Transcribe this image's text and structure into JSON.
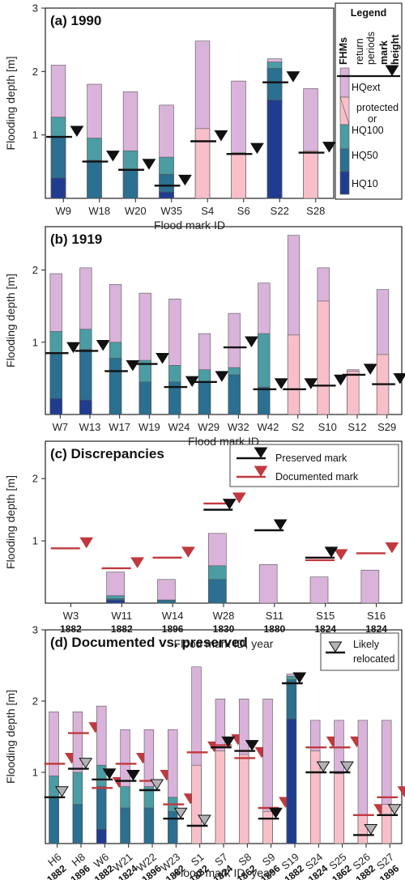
{
  "colors": {
    "hqext": "#d9b3d9",
    "hq100": "#4c9ca3",
    "hq50": "#2b6f91",
    "hq10": "#1f3c8f",
    "protected": "#f8bfc9",
    "preserved": "#111111",
    "documented": "#c0393e",
    "relocated": "#b3b3b3"
  },
  "legend_main": {
    "title": "Legend",
    "fhms": "FHMs",
    "return": "return",
    "periods": "periods",
    "mark": "mark",
    "height": "height",
    "hqext": "HQext",
    "protected": "protected",
    "or": "or",
    "hq100": "HQ100",
    "hq50": "HQ50",
    "hq10": "HQ10"
  },
  "chart_data": [
    {
      "type": "bar",
      "title": "(a) 1990",
      "ylabel": "Flooding depth [m]",
      "xlabel": "Flood mark ID",
      "ylim": [
        0,
        3.0
      ],
      "yticks": [
        "1",
        "2",
        "3"
      ],
      "categories": [
        "W9",
        "W18",
        "W20",
        "W35",
        "S4",
        "S6",
        "S22",
        "S28"
      ],
      "series": [
        {
          "key": "hq10",
          "values": [
            0.32,
            0,
            0,
            0.1,
            0,
            0,
            1.55,
            0
          ]
        },
        {
          "key": "hq50",
          "values": [
            0.97,
            0.6,
            0.45,
            0.38,
            0,
            0,
            2.05,
            0
          ]
        },
        {
          "key": "hq100",
          "values": [
            1.28,
            0.95,
            0.75,
            0.65,
            0,
            0,
            2.15,
            0
          ]
        },
        {
          "key": "protected",
          "values": [
            0,
            0,
            0,
            0,
            1.1,
            0.72,
            0,
            0.75
          ]
        },
        {
          "key": "hqext",
          "values": [
            2.1,
            1.8,
            1.68,
            1.47,
            2.48,
            1.85,
            2.2,
            1.73
          ]
        }
      ],
      "preserved": [
        0.97,
        0.58,
        0.45,
        0.2,
        0.9,
        0.7,
        1.83,
        0.72
      ],
      "documented": []
    },
    {
      "type": "bar",
      "title": "(b) 1919",
      "ylabel": "Flooding depth [m]",
      "xlabel": "Flood mark ID",
      "ylim": [
        0,
        2.6
      ],
      "yticks": [
        "1",
        "2"
      ],
      "categories": [
        "W7",
        "W13",
        "W17",
        "W19",
        "W24",
        "W29",
        "W32",
        "W42",
        "S2",
        "S10",
        "S12",
        "S29"
      ],
      "series": [
        {
          "key": "hq10",
          "values": [
            0.22,
            0.2,
            0,
            0,
            0,
            0,
            0,
            0,
            0,
            0,
            0,
            0
          ]
        },
        {
          "key": "hq50",
          "values": [
            0.85,
            0.9,
            0.78,
            0.45,
            0.45,
            0.45,
            0.55,
            0.38,
            0,
            0,
            0,
            0
          ]
        },
        {
          "key": "hq100",
          "values": [
            1.15,
            1.18,
            1.0,
            0.75,
            0.68,
            0.62,
            0.65,
            1.12,
            0,
            0,
            0,
            0
          ]
        },
        {
          "key": "protected",
          "values": [
            0,
            0,
            0,
            0,
            0,
            0,
            0,
            0,
            1.1,
            1.57,
            0.6,
            0.83
          ]
        },
        {
          "key": "hqext",
          "values": [
            1.95,
            2.03,
            1.8,
            1.68,
            1.6,
            1.12,
            1.4,
            1.82,
            2.48,
            2.03,
            0.62,
            1.73
          ]
        }
      ],
      "preserved": [
        0.85,
        0.88,
        0.6,
        0.7,
        0.38,
        0.45,
        0.93,
        0.35,
        0.35,
        0.4,
        0.55,
        0.42
      ],
      "documented": []
    },
    {
      "type": "bar",
      "title": "(c) Discrepancies",
      "ylabel": "Flooding depth [m]",
      "xlabel": "Flood mark ID, year",
      "ylim": [
        0,
        2.6
      ],
      "yticks": [
        "1",
        "2"
      ],
      "categories": [
        "W3",
        "W11",
        "W14",
        "W28",
        "S11",
        "S15",
        "S16"
      ],
      "years": [
        "1882",
        "1882",
        "1896",
        "1830",
        "1880",
        "1824",
        "1824"
      ],
      "series": [
        {
          "key": "hq10",
          "values": [
            0,
            0.05,
            0,
            0,
            0,
            0,
            0
          ]
        },
        {
          "key": "hq50",
          "values": [
            0,
            0.07,
            0.05,
            0.38,
            0,
            0,
            0
          ]
        },
        {
          "key": "hq100",
          "values": [
            0,
            0.12,
            0.05,
            0.6,
            0,
            0,
            0
          ]
        },
        {
          "key": "hqext",
          "values": [
            0,
            0.5,
            0.38,
            1.12,
            0.62,
            0.42,
            0.53
          ]
        }
      ],
      "preserved": [
        null,
        null,
        null,
        1.5,
        1.17,
        0.73,
        null
      ],
      "documented": [
        0.88,
        0.56,
        0.73,
        1.6,
        null,
        0.69,
        0.8
      ],
      "legend": {
        "preserved": "Preserved mark",
        "documented": "Documented mark"
      }
    },
    {
      "type": "bar",
      "title": "(d) Documented vs. preserved",
      "ylabel": "Flooding depth [m]",
      "xlabel": "Flood mark ID, year",
      "ylim": [
        0,
        3.0
      ],
      "yticks": [
        "1",
        "2",
        "3"
      ],
      "categories": [
        "H6",
        "H8",
        "W6",
        "W21",
        "W22",
        "W23",
        "S1",
        "S7",
        "S8",
        "S9",
        "S19",
        "S24",
        "S25",
        "S26",
        "S27"
      ],
      "years": [
        "1882",
        "1896",
        "1882",
        "1824",
        "1896",
        "1882",
        "1882",
        "1824",
        "1862",
        "1896",
        "1882",
        "1824",
        "1862",
        "1882",
        "1896"
      ],
      "series": [
        {
          "key": "hq10",
          "values": [
            0,
            0,
            0.2,
            0,
            0,
            0,
            0,
            0,
            0,
            0,
            1.75,
            0,
            0,
            0,
            0
          ]
        },
        {
          "key": "hq50",
          "values": [
            0.65,
            0.55,
            0.8,
            0.5,
            0.5,
            0.45,
            0,
            0,
            0,
            0,
            2.3,
            0,
            0,
            0,
            0
          ]
        },
        {
          "key": "hq100",
          "values": [
            0.95,
            1.0,
            1.1,
            0.8,
            0.8,
            0.65,
            0,
            0,
            0,
            0,
            2.35,
            0,
            0,
            0,
            0
          ]
        },
        {
          "key": "protected",
          "values": [
            0,
            0,
            0,
            0,
            0,
            0,
            1.1,
            1.3,
            1.25,
            0.45,
            0,
            1.3,
            0.98,
            0.4,
            0.55
          ]
        },
        {
          "key": "hqext",
          "values": [
            1.85,
            1.85,
            1.93,
            1.6,
            1.6,
            1.6,
            2.48,
            2.03,
            2.03,
            2.03,
            2.38,
            1.73,
            1.73,
            1.73,
            1.73
          ]
        }
      ],
      "preserved": [
        0.65,
        1.05,
        0.9,
        0.88,
        0.75,
        0.35,
        0.25,
        1.35,
        1.3,
        0.35,
        2.25,
        1.0,
        1.0,
        0.12,
        0.4
      ],
      "documented": [
        1.12,
        1.55,
        0.78,
        1.12,
        0.88,
        0.55,
        1.28,
        1.38,
        1.2,
        0.5,
        null,
        1.35,
        1.35,
        0.4,
        0.65
      ],
      "relocated": [
        true,
        true,
        false,
        false,
        true,
        true,
        true,
        false,
        false,
        false,
        false,
        true,
        true,
        true,
        true
      ],
      "legend": {
        "relocated_1": "Likely",
        "relocated_2": "relocated"
      }
    }
  ]
}
